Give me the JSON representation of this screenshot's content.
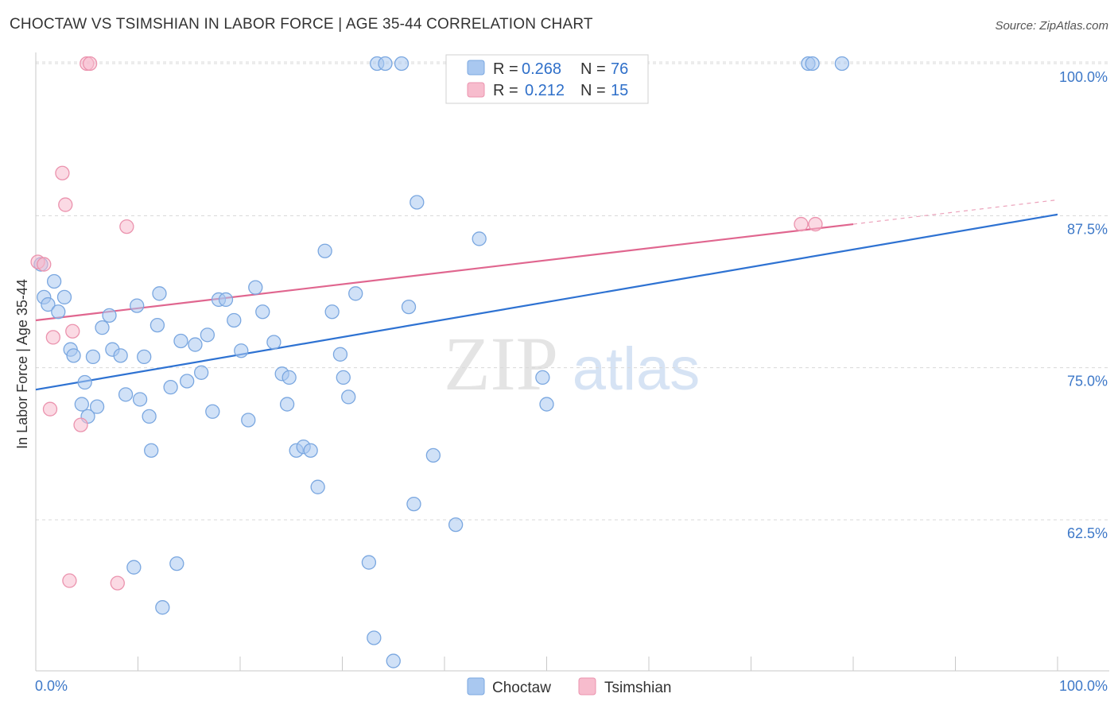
{
  "title": "CHOCTAW VS TSIMSHIAN IN LABOR FORCE | AGE 35-44 CORRELATION CHART",
  "source": "Source: ZipAtlas.com",
  "watermark": {
    "zip": "ZIP",
    "atlas": "atlas"
  },
  "legend": {
    "r_label": "R =",
    "n_label": "N =",
    "entries": [
      {
        "r": "0.268",
        "n": "76"
      },
      {
        "r": "0.212",
        "n": "15"
      }
    ]
  },
  "colors": {
    "choctaw_fill": "#a9c8f0",
    "choctaw_stroke": "#7aa7e0",
    "choctaw_line": "#2e72d2",
    "tsimshian_fill": "#f7bccd",
    "tsimshian_stroke": "#eb93ae",
    "tsimshian_line": "#e0668f",
    "grid": "#d8d8d8",
    "tick_text": "#3d78c8"
  },
  "chart_data": {
    "type": "scatter",
    "title": "CHOCTAW VS TSIMSHIAN IN LABOR FORCE | AGE 35-44 CORRELATION CHART",
    "xlabel": "",
    "ylabel": "In Labor Force | Age 35-44",
    "x_tick_labels": [
      "0.0%",
      "100.0%"
    ],
    "y_tick_labels": [
      "62.5%",
      "75.0%",
      "87.5%",
      "100.0%"
    ],
    "y_ticks": [
      62.5,
      75.0,
      87.5,
      100.0
    ],
    "xlim": [
      0,
      100
    ],
    "ylim": [
      50,
      101
    ],
    "grid": "horizontal dashed",
    "legend_position": "top-center",
    "series": [
      {
        "name": "Choctaw",
        "x": [
          0.5,
          0.8,
          1.2,
          1.8,
          2.2,
          2.8,
          3.4,
          3.7,
          4.5,
          4.8,
          5.1,
          5.6,
          6.0,
          6.5,
          7.2,
          7.5,
          8.3,
          8.8,
          9.6,
          9.9,
          10.2,
          10.6,
          11.1,
          11.3,
          11.9,
          12.1,
          12.4,
          13.2,
          13.8,
          14.2,
          14.8,
          15.6,
          16.2,
          16.8,
          17.3,
          17.9,
          18.6,
          19.4,
          20.1,
          20.8,
          21.5,
          22.2,
          23.3,
          24.1,
          24.6,
          24.8,
          25.5,
          26.2,
          26.9,
          27.6,
          28.3,
          29.0,
          29.8,
          30.1,
          30.6,
          31.3,
          32.6,
          33.1,
          33.4,
          34.2,
          35.0,
          35.8,
          36.5,
          37.0,
          37.3,
          38.9,
          41.1,
          43.4,
          45.4,
          45.8,
          49.6,
          50.0,
          57.6,
          75.6,
          76.0,
          78.9
        ],
        "y": [
          83.5,
          80.8,
          80.2,
          82.1,
          79.6,
          80.8,
          76.5,
          76.0,
          72.0,
          73.8,
          71.0,
          75.9,
          71.8,
          78.3,
          79.3,
          76.5,
          76.0,
          72.8,
          58.6,
          80.1,
          72.4,
          75.9,
          71.0,
          68.2,
          78.5,
          81.1,
          55.3,
          73.4,
          58.9,
          77.2,
          73.9,
          76.9,
          74.6,
          77.7,
          71.4,
          80.6,
          80.6,
          78.9,
          76.4,
          70.7,
          81.6,
          79.6,
          77.1,
          74.5,
          72.0,
          74.2,
          68.2,
          68.5,
          68.2,
          65.2,
          84.6,
          79.6,
          76.1,
          74.2,
          72.6,
          81.1,
          59.0,
          52.8,
          100.0,
          100.0,
          50.9,
          100.0,
          80.0,
          63.8,
          88.6,
          67.8,
          62.1,
          85.6,
          100.0,
          100.0,
          74.2,
          72.0,
          100.0,
          100.0,
          100.0,
          100.0
        ]
      },
      {
        "name": "Tsimshian",
        "x": [
          0.2,
          0.8,
          1.4,
          1.7,
          2.6,
          2.9,
          3.3,
          3.6,
          4.4,
          5.0,
          5.3,
          8.0,
          8.9,
          74.9,
          76.3
        ],
        "y": [
          83.7,
          83.5,
          71.6,
          77.5,
          91.0,
          88.4,
          57.5,
          78.0,
          70.3,
          100.0,
          100.0,
          57.3,
          86.6,
          86.8,
          86.8
        ]
      }
    ],
    "trendlines": [
      {
        "series": "Choctaw",
        "x": [
          0,
          100
        ],
        "y": [
          73.2,
          87.6
        ]
      },
      {
        "series": "Tsimshian",
        "x": [
          0,
          80
        ],
        "y": [
          78.9,
          86.8
        ],
        "dashed_extension": {
          "x": [
            80,
            100
          ],
          "y": [
            86.8,
            88.8
          ]
        }
      }
    ]
  },
  "bottom_legend": [
    "Choctaw",
    "Tsimshian"
  ]
}
